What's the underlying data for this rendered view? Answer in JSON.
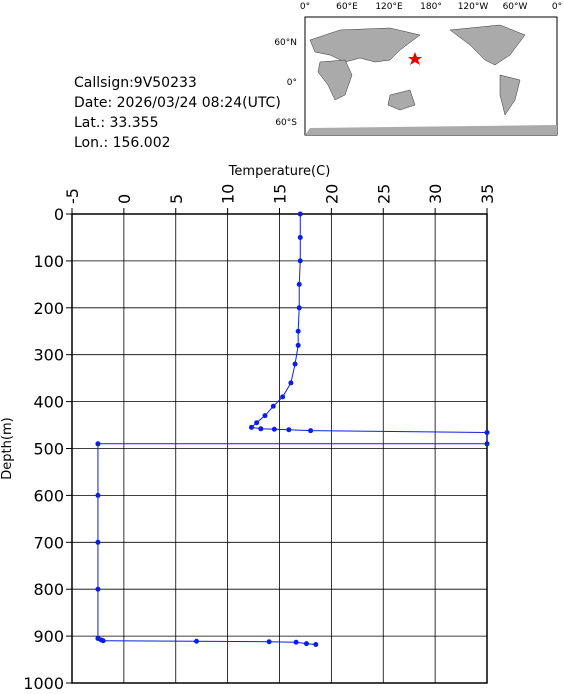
{
  "info": {
    "callsign": "Callsign:9V50233",
    "date": "Date:  2026/03/24 08:24(UTC)",
    "lat": "Lat.:   33.355",
    "lon": "Lon.:  156.002"
  },
  "map": {
    "lon_labels": [
      "0°",
      "60°E",
      "120°E",
      "180°",
      "120°W",
      "60°W",
      "0°"
    ],
    "lat_labels": [
      "60°N",
      "0°",
      "60°S"
    ]
  },
  "chart_data": {
    "type": "line",
    "x_label": "Temperature(C)",
    "y_label": "Depth(m)",
    "color": "#0a1ee6",
    "grid": true,
    "xlim": [
      -5,
      35
    ],
    "xticks": [
      -5,
      0,
      5,
      10,
      15,
      20,
      25,
      30,
      35
    ],
    "ylim": [
      1000,
      0
    ],
    "yticks": [
      0,
      100,
      200,
      300,
      400,
      500,
      600,
      700,
      800,
      900,
      1000
    ],
    "x": [
      17.0,
      17.0,
      17.0,
      16.9,
      16.9,
      16.8,
      16.8,
      16.5,
      16.1,
      15.3,
      14.4,
      13.6,
      12.8,
      12.3,
      13.2,
      14.5,
      15.9,
      18.0,
      35,
      35,
      -2.5,
      -2.5,
      -2.5,
      -2.5,
      -2.5,
      -2.2,
      -2.0,
      7.0,
      14.0,
      16.6,
      17.6,
      18.5
    ],
    "values": [
      0,
      50,
      100,
      150,
      200,
      250,
      280,
      320,
      360,
      390,
      410,
      430,
      445,
      455,
      458,
      459,
      460,
      462,
      466,
      490,
      490,
      600,
      700,
      800,
      905,
      908,
      910,
      911,
      912,
      913,
      916,
      918
    ]
  }
}
